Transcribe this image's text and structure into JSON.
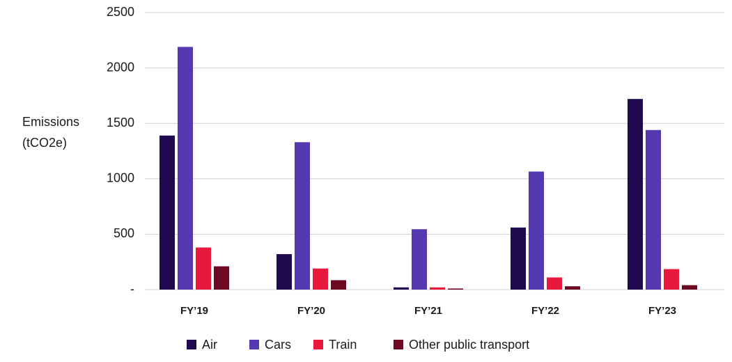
{
  "chart_data": {
    "type": "bar",
    "y_label": [
      "Emissions",
      "(tCO2e)"
    ],
    "categories": [
      "FY’19",
      "FY’20",
      "FY’21",
      "FY’22",
      "FY’23"
    ],
    "series": [
      {
        "name": "Air",
        "color": "#1f0a4f",
        "values": [
          1390,
          320,
          20,
          560,
          1720
        ]
      },
      {
        "name": "Cars",
        "color": "#5439b0",
        "values": [
          2190,
          1330,
          545,
          1065,
          1440
        ]
      },
      {
        "name": "Train",
        "color": "#e8193c",
        "values": [
          380,
          190,
          20,
          110,
          185
        ]
      },
      {
        "name": "Other public transport",
        "color": "#6b0a22",
        "values": [
          210,
          85,
          10,
          30,
          40
        ]
      }
    ],
    "ylim": [
      0,
      2500
    ],
    "yticks": [
      {
        "value": 0,
        "label": "-"
      },
      500,
      1000,
      1500,
      2000,
      2500
    ],
    "grid": true
  }
}
